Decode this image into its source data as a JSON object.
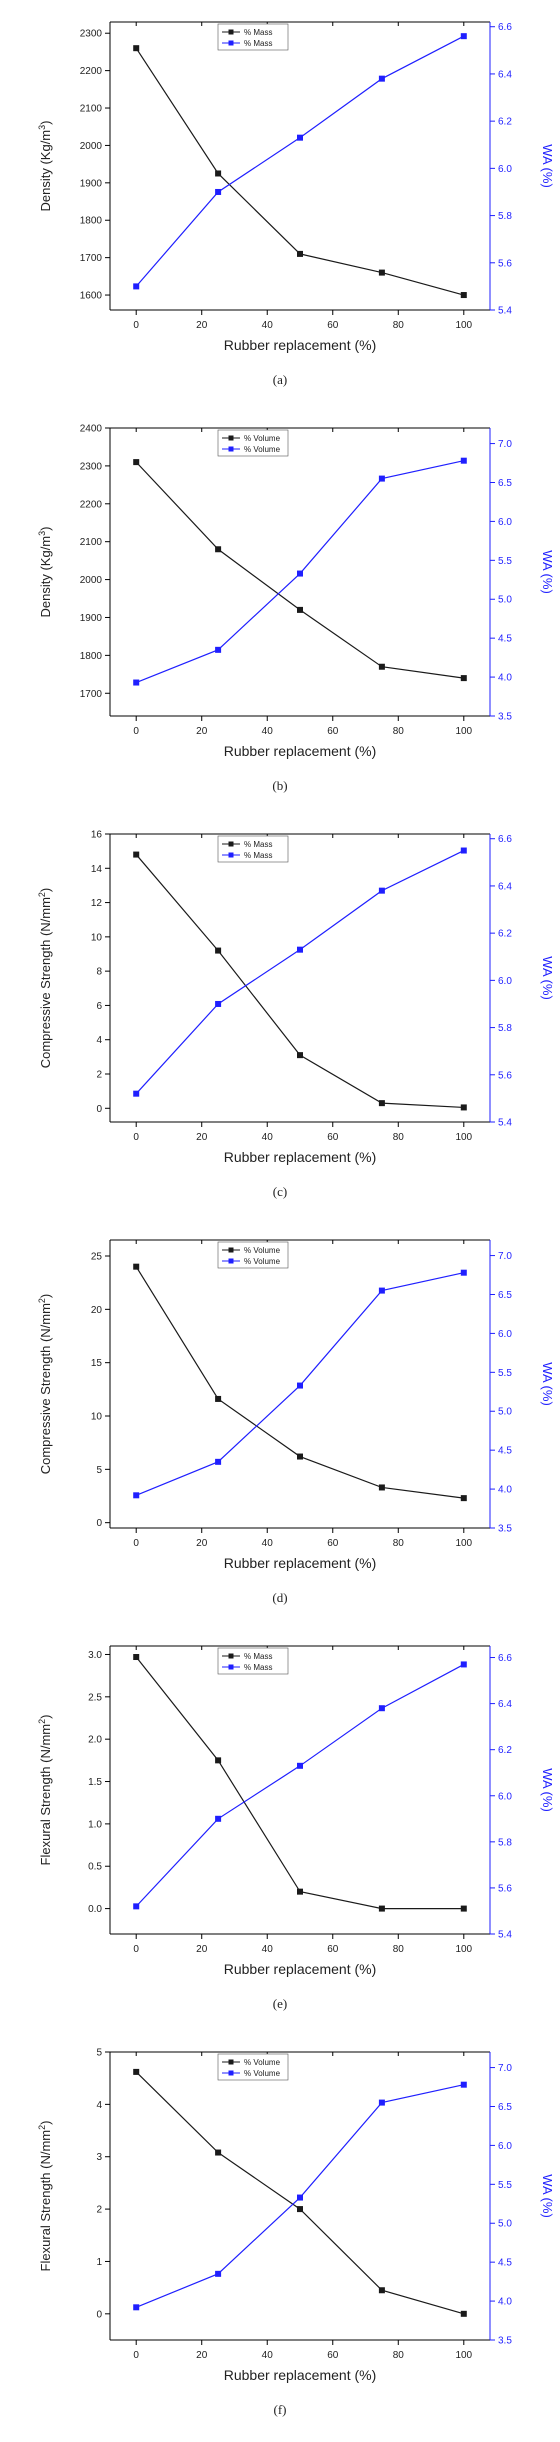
{
  "colors": {
    "left_series": "#1a1a1a",
    "right_series": "#1f1fff",
    "axis": "#000000",
    "right_axis": "#1f1fff"
  },
  "chart_data": [
    {
      "type": "line",
      "caption": "(a)",
      "legend_position": "top-center",
      "grid": false,
      "x": [
        0,
        25,
        50,
        75,
        100
      ],
      "xlabel": "Rubber replacement (%)",
      "xlim": [
        -8,
        108
      ],
      "xticks": [
        0,
        20,
        40,
        60,
        80,
        100
      ],
      "ylabel": "Density (Kg/m3)",
      "ylim": [
        1560,
        2330
      ],
      "yticks": [
        1600,
        1700,
        1800,
        1900,
        2000,
        2100,
        2200,
        2300
      ],
      "y2label": "WA (%)",
      "y2lim": [
        5.4,
        6.62
      ],
      "y2ticks": [
        5.4,
        5.6,
        5.8,
        6.0,
        6.2,
        6.4,
        6.6
      ],
      "series": [
        {
          "name": "% Mass",
          "axis": "left",
          "values": [
            2260,
            1925,
            1710,
            1660,
            1600
          ]
        },
        {
          "name": "% Mass",
          "axis": "right",
          "values": [
            5.5,
            5.9,
            6.13,
            6.38,
            6.56
          ]
        }
      ]
    },
    {
      "type": "line",
      "caption": "(b)",
      "legend_position": "top-center",
      "grid": false,
      "x": [
        0,
        25,
        50,
        75,
        100
      ],
      "xlabel": "Rubber replacement (%)",
      "xlim": [
        -8,
        108
      ],
      "xticks": [
        0,
        20,
        40,
        60,
        80,
        100
      ],
      "ylabel": "Density (Kg/m3)",
      "ylim": [
        1640,
        2400
      ],
      "yticks": [
        1700,
        1800,
        1900,
        2000,
        2100,
        2200,
        2300,
        2400
      ],
      "y2label": "WA (%)",
      "y2lim": [
        3.5,
        7.2
      ],
      "y2ticks": [
        3.5,
        4.0,
        4.5,
        5.0,
        5.5,
        6.0,
        6.5,
        7.0
      ],
      "series": [
        {
          "name": "% Volume",
          "axis": "left",
          "values": [
            2310,
            2080,
            1920,
            1770,
            1740
          ]
        },
        {
          "name": "% Volume",
          "axis": "right",
          "values": [
            3.93,
            4.35,
            5.33,
            6.55,
            6.78
          ]
        }
      ]
    },
    {
      "type": "line",
      "caption": "(c)",
      "legend_position": "top-center",
      "grid": false,
      "x": [
        0,
        25,
        50,
        75,
        100
      ],
      "xlabel": "Rubber replacement (%)",
      "xlim": [
        -8,
        108
      ],
      "xticks": [
        0,
        20,
        40,
        60,
        80,
        100
      ],
      "ylabel": "Compressive Strength (N/mm2)",
      "ylim": [
        -0.8,
        16
      ],
      "yticks": [
        0,
        2,
        4,
        6,
        8,
        10,
        12,
        14,
        16
      ],
      "y2label": "WA (%)",
      "y2lim": [
        5.4,
        6.62
      ],
      "y2ticks": [
        5.4,
        5.6,
        5.8,
        6.0,
        6.2,
        6.4,
        6.6
      ],
      "series": [
        {
          "name": "% Mass",
          "axis": "left",
          "values": [
            14.8,
            9.2,
            3.1,
            0.3,
            0.05
          ]
        },
        {
          "name": "% Mass",
          "axis": "right",
          "values": [
            5.52,
            5.9,
            6.13,
            6.38,
            6.55
          ]
        }
      ]
    },
    {
      "type": "line",
      "caption": "(d)",
      "legend_position": "top-center",
      "grid": false,
      "x": [
        0,
        25,
        50,
        75,
        100
      ],
      "xlabel": "Rubber replacement (%)",
      "xlim": [
        -8,
        108
      ],
      "xticks": [
        0,
        20,
        40,
        60,
        80,
        100
      ],
      "ylabel": "Compressive Strength (N/mm2)",
      "ylim": [
        -0.5,
        26.5
      ],
      "yticks": [
        0,
        5,
        10,
        15,
        20,
        25
      ],
      "y2label": "WA (%)",
      "y2lim": [
        3.5,
        7.2
      ],
      "y2ticks": [
        3.5,
        4.0,
        4.5,
        5.0,
        5.5,
        6.0,
        6.5,
        7.0
      ],
      "series": [
        {
          "name": "% Volume",
          "axis": "left",
          "values": [
            24.0,
            11.6,
            6.2,
            3.3,
            2.3
          ]
        },
        {
          "name": "% Volume",
          "axis": "right",
          "values": [
            3.92,
            4.35,
            5.33,
            6.55,
            6.78
          ]
        }
      ]
    },
    {
      "type": "line",
      "caption": "(e)",
      "legend_position": "top-center",
      "grid": false,
      "x": [
        0,
        25,
        50,
        75,
        100
      ],
      "xlabel": "Rubber replacement (%)",
      "xlim": [
        -8,
        108
      ],
      "xticks": [
        0,
        20,
        40,
        60,
        80,
        100
      ],
      "ylabel": "Flexural Strength (N/mm2)",
      "ylim": [
        -0.3,
        3.1
      ],
      "yticks": [
        0.0,
        0.5,
        1.0,
        1.5,
        2.0,
        2.5,
        3.0
      ],
      "y2label": "WA (%)",
      "y2lim": [
        5.4,
        6.65
      ],
      "y2ticks": [
        5.4,
        5.6,
        5.8,
        6.0,
        6.2,
        6.4,
        6.6
      ],
      "series": [
        {
          "name": "% Mass",
          "axis": "left",
          "values": [
            2.97,
            1.75,
            0.2,
            0.0,
            0.0
          ]
        },
        {
          "name": "% Mass",
          "axis": "right",
          "values": [
            5.52,
            5.9,
            6.13,
            6.38,
            6.57
          ]
        }
      ]
    },
    {
      "type": "line",
      "caption": "(f)",
      "legend_position": "top-center",
      "grid": false,
      "x": [
        0,
        25,
        50,
        75,
        100
      ],
      "xlabel": "Rubber replacement (%)",
      "xlim": [
        -8,
        108
      ],
      "xticks": [
        0,
        20,
        40,
        60,
        80,
        100
      ],
      "ylabel": "Flexural Strength (N/mm2)",
      "ylim": [
        -0.5,
        5.0
      ],
      "yticks": [
        0,
        1,
        2,
        3,
        4,
        5
      ],
      "y2label": "WA (%)",
      "y2lim": [
        3.5,
        7.2
      ],
      "y2ticks": [
        3.5,
        4.0,
        4.5,
        5.0,
        5.5,
        6.0,
        6.5,
        7.0
      ],
      "series": [
        {
          "name": "% Volume",
          "axis": "left",
          "values": [
            4.62,
            3.08,
            2.0,
            0.45,
            0.0
          ]
        },
        {
          "name": "% Volume",
          "axis": "right",
          "values": [
            3.92,
            4.35,
            5.33,
            6.55,
            6.78
          ]
        }
      ]
    }
  ]
}
